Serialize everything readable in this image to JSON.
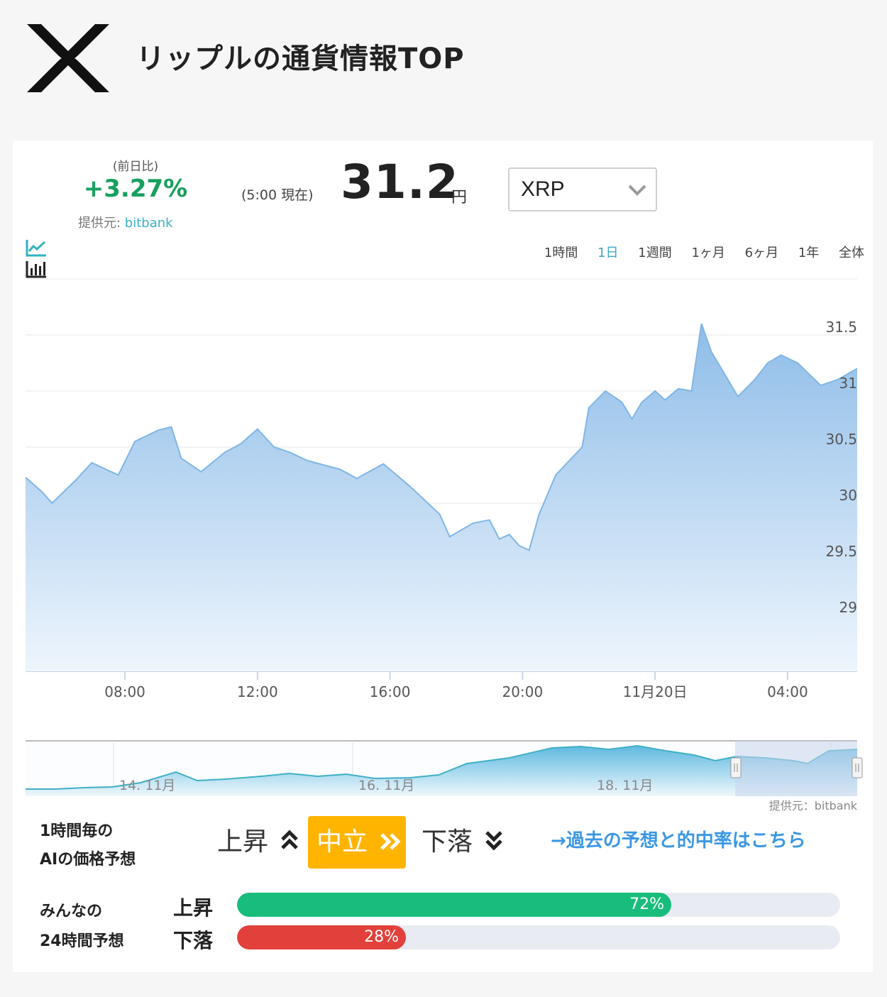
{
  "header": {
    "title": "リップルの通貨情報TOP",
    "logo_icon": "xrp-logo-icon"
  },
  "ticker": {
    "change_label": "(前日比)",
    "change_value": "+3.27%",
    "change_color": "#17a05d",
    "provider_prefix": "提供元: ",
    "provider_name": "bitbank",
    "time_note": "(5:00 現在)",
    "price": "31.2",
    "unit": "円"
  },
  "currency_select": {
    "value": "XRP",
    "icon": "chevron-down-icon"
  },
  "chart_type_icons": [
    "line-chart-icon",
    "bar-chart-icon"
  ],
  "ranges": [
    {
      "label": "1時間",
      "active": false
    },
    {
      "label": "1日",
      "active": true
    },
    {
      "label": "1週間",
      "active": false
    },
    {
      "label": "1ヶ月",
      "active": false
    },
    {
      "label": "6ヶ月",
      "active": false
    },
    {
      "label": "1年",
      "active": false
    },
    {
      "label": "全体",
      "active": false
    }
  ],
  "chart_data": {
    "type": "area",
    "y_ticks": [
      "29",
      "29.5",
      "30",
      "30.5",
      "31",
      "31.5"
    ],
    "ylim": [
      28.5,
      32
    ],
    "x_ticks": [
      "08:00",
      "12:00",
      "16:00",
      "20:00",
      "11月20日",
      "04:00"
    ],
    "x_hours": [
      8,
      12,
      16,
      20,
      24,
      28
    ],
    "xlim": [
      5,
      30.1
    ],
    "series": [
      {
        "x": [
          5,
          5.5,
          5.8,
          6.5,
          7,
          7.8,
          8.3,
          9,
          9.4,
          9.7,
          10.3,
          11,
          11.5,
          12,
          12.5,
          13,
          13.5,
          14.5,
          15,
          15.8,
          16.6,
          17.5,
          17.8,
          18.5,
          19,
          19.3,
          19.6,
          19.9,
          20.2,
          20.5,
          21,
          21.8,
          22,
          22.5,
          23,
          23.3,
          23.6,
          24,
          24.3,
          24.7,
          25.1,
          25.4,
          25.7,
          26,
          26.5,
          27,
          27.4,
          27.8,
          28.3,
          29,
          29.5,
          30.1
        ],
        "values": [
          30.23,
          30.1,
          30.0,
          30.2,
          30.36,
          30.25,
          30.55,
          30.65,
          30.68,
          30.4,
          30.28,
          30.45,
          30.53,
          30.66,
          30.5,
          30.45,
          30.38,
          30.3,
          30.22,
          30.35,
          30.15,
          29.9,
          29.7,
          29.82,
          29.85,
          29.68,
          29.72,
          29.62,
          29.58,
          29.9,
          30.25,
          30.5,
          30.85,
          31.0,
          30.9,
          30.75,
          30.9,
          31.0,
          30.92,
          31.02,
          31.0,
          31.6,
          31.35,
          31.2,
          30.95,
          31.1,
          31.25,
          31.32,
          31.25,
          31.05,
          31.1,
          31.2
        ]
      }
    ],
    "navigator_labels": [
      "14. 11月",
      "16. 11月",
      "18. 11月"
    ],
    "navigator_provider": "提供元：bitbank",
    "colors": {
      "line": "#7fb6e6",
      "fill_top": "#8ebde8",
      "fill_bottom": "#eef5fd",
      "nav_line": "#3fb0c4",
      "nav_window": "#c9d6ec"
    }
  },
  "ai_prediction": {
    "label_line1": "1時間毎の",
    "label_line2": "AIの価格予想",
    "up_label": "上昇",
    "neutral_label": "中立",
    "down_label": "下落",
    "neutral_color": "#ffb400",
    "past_link": "→過去の予想と的中率はこちら"
  },
  "community_vote": {
    "label_line1": "みんなの",
    "label_line2": "24時間予想",
    "up_label": "上昇",
    "up_percent": 72,
    "up_text": "72%",
    "up_color": "#18bd7b",
    "down_label": "下落",
    "down_percent": 28,
    "down_text": "28%",
    "down_color": "#e2403a"
  }
}
